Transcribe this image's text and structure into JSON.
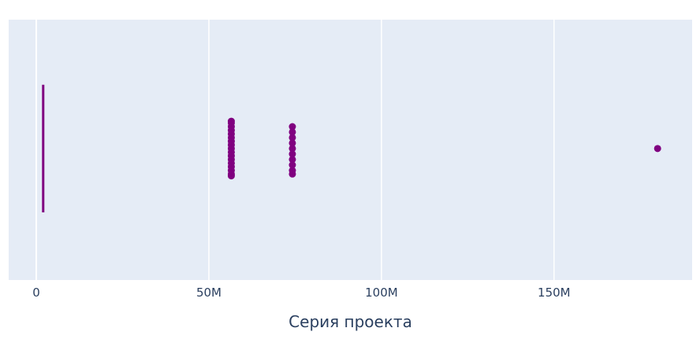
{
  "chart_data": {
    "type": "box",
    "orientation": "horizontal",
    "title": "",
    "xlabel": "Серия проекта",
    "ylabel": "",
    "xlim": [
      -8000000,
      190000000
    ],
    "x_ticks": [
      {
        "value": 0,
        "label": "0"
      },
      {
        "value": 50000000,
        "label": "50M"
      },
      {
        "value": 100000000,
        "label": "100M"
      },
      {
        "value": 150000000,
        "label": "150M"
      }
    ],
    "grid": true,
    "colors": {
      "plot_bg": "#e5ecf6",
      "grid": "#ffffff",
      "marker": "#800080",
      "text": "#2a3f5f"
    },
    "series": [
      {
        "box": {
          "min": 2000000,
          "q1": 2000000,
          "median": 2000000,
          "q3": 2000000,
          "max": 2000000
        },
        "outliers": [
          {
            "x": 56500000,
            "y": -0.28
          },
          {
            "x": 56500000,
            "y": -0.24
          },
          {
            "x": 56500000,
            "y": -0.2
          },
          {
            "x": 56500000,
            "y": -0.16
          },
          {
            "x": 56500000,
            "y": -0.12
          },
          {
            "x": 56500000,
            "y": -0.08
          },
          {
            "x": 56500000,
            "y": -0.04
          },
          {
            "x": 56500000,
            "y": 0.0
          },
          {
            "x": 56500000,
            "y": 0.04
          },
          {
            "x": 56500000,
            "y": 0.08
          },
          {
            "x": 56500000,
            "y": 0.12
          },
          {
            "x": 56500000,
            "y": 0.16
          },
          {
            "x": 56500000,
            "y": 0.2
          },
          {
            "x": 56500000,
            "y": 0.24
          },
          {
            "x": 56500000,
            "y": 0.28
          },
          {
            "x": 56500000,
            "y": 0.3
          },
          {
            "x": 56500000,
            "y": -0.3
          },
          {
            "x": 74200000,
            "y": -0.24
          },
          {
            "x": 74200000,
            "y": -0.18
          },
          {
            "x": 74200000,
            "y": -0.12
          },
          {
            "x": 74200000,
            "y": -0.06
          },
          {
            "x": 74200000,
            "y": 0.0
          },
          {
            "x": 74200000,
            "y": 0.06
          },
          {
            "x": 74200000,
            "y": 0.12
          },
          {
            "x": 74200000,
            "y": 0.18
          },
          {
            "x": 74200000,
            "y": 0.24
          },
          {
            "x": 74200000,
            "y": 0.28
          },
          {
            "x": 180000000,
            "y": 0.0
          }
        ]
      }
    ]
  }
}
